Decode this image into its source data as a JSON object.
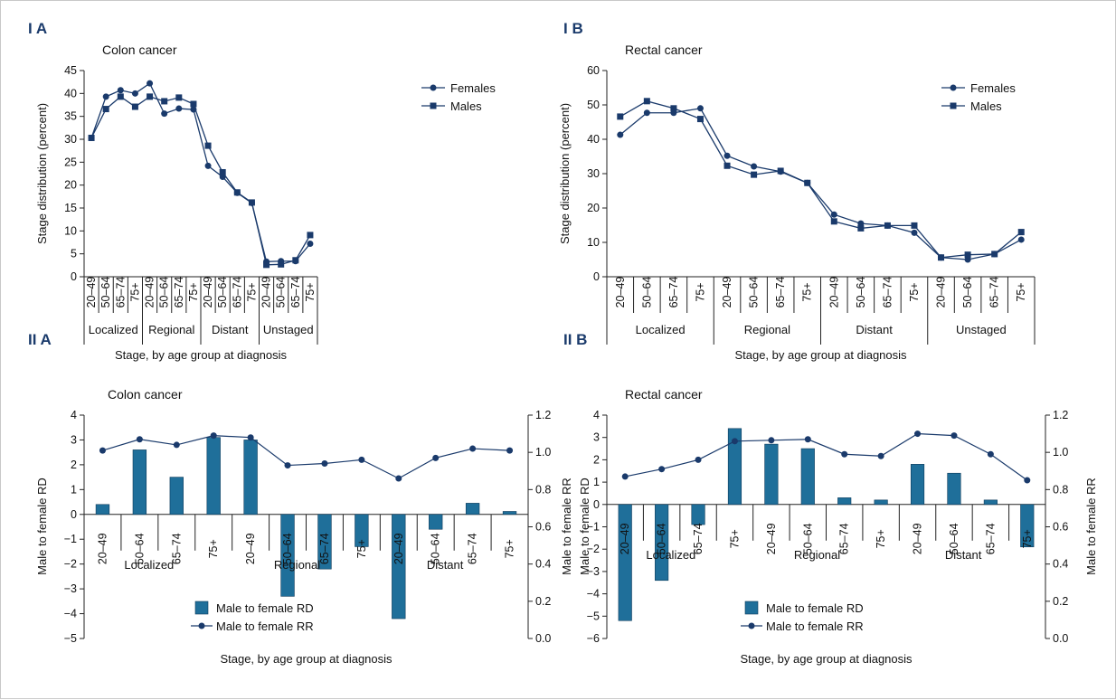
{
  "colors": {
    "series": "#1a3a6b",
    "bar": "#1f6f9a",
    "bar_stroke": "#0d3a5a",
    "axis": "#222222"
  },
  "chart_data": [
    {
      "panel": "I A",
      "type": "line",
      "title": "Colon cancer",
      "ylabel": "Stage distribution (percent)",
      "xlabel": "Stage, by age group at diagnosis",
      "ylim": [
        0,
        45
      ],
      "yticks": [
        "0",
        "5",
        "10",
        "15",
        "20",
        "25",
        "30",
        "35",
        "40",
        "45"
      ],
      "categories": [
        "20–49",
        "50–64",
        "65–74",
        "75+",
        "20–49",
        "50–64",
        "65–74",
        "75+",
        "20–49",
        "50–64",
        "65–74",
        "75+",
        "20–49",
        "50–64",
        "65–74",
        "75+"
      ],
      "groups": [
        "Localized",
        "Regional",
        "Distant",
        "Unstaged"
      ],
      "legend_position": "top-right",
      "series": [
        {
          "name": "Females",
          "marker": "circle",
          "values": [
            30.3,
            39.3,
            40.7,
            40.0,
            42.2,
            35.6,
            36.7,
            36.5,
            24.2,
            21.8,
            18.3,
            16.1,
            3.3,
            3.4,
            3.4,
            7.2
          ]
        },
        {
          "name": "Males",
          "marker": "square",
          "values": [
            30.3,
            36.6,
            39.3,
            37.1,
            39.3,
            38.3,
            39.1,
            37.7,
            28.6,
            22.8,
            18.4,
            16.2,
            2.6,
            2.7,
            3.6,
            9.1
          ]
        }
      ]
    },
    {
      "panel": "I B",
      "type": "line",
      "title": "Rectal cancer",
      "ylabel": "Stage distribution (percent)",
      "xlabel": "Stage, by age group at diagnosis",
      "ylim": [
        0,
        60
      ],
      "yticks": [
        "0",
        "10",
        "20",
        "30",
        "40",
        "50",
        "60"
      ],
      "categories": [
        "20–49",
        "50–64",
        "65–74",
        "75+",
        "20–49",
        "50–64",
        "65–74",
        "75+",
        "20–49",
        "50–64",
        "65–74",
        "75+",
        "20–49",
        "50–64",
        "65–74",
        "75+"
      ],
      "groups": [
        "Localized",
        "Regional",
        "Distant",
        "Unstaged"
      ],
      "legend_position": "top-right",
      "series": [
        {
          "name": "Females",
          "marker": "circle",
          "values": [
            41.3,
            47.7,
            47.7,
            49.0,
            35.2,
            32.1,
            30.6,
            27.3,
            18.1,
            15.5,
            14.9,
            12.8,
            5.6,
            5.0,
            6.6,
            10.8
          ]
        },
        {
          "name": "Males",
          "marker": "square",
          "values": [
            46.6,
            51.1,
            49.0,
            45.9,
            32.3,
            29.7,
            30.8,
            27.3,
            16.1,
            14.1,
            14.9,
            14.9,
            5.6,
            6.4,
            6.6,
            13.0
          ]
        }
      ]
    },
    {
      "panel": "II A",
      "type": "bar",
      "title": "Colon cancer",
      "ylabel": "Male to female RD",
      "y2label": "Male to female RR",
      "xlabel": "Stage, by age group at diagnosis",
      "ylim": [
        -5,
        4
      ],
      "yticks": [
        "−5",
        "−4",
        "−3",
        "−2",
        "−1",
        "0",
        "1",
        "2",
        "3",
        "4"
      ],
      "y2lim": [
        0,
        1.2
      ],
      "y2ticks": [
        "0.0",
        "0.2",
        "0.4",
        "0.6",
        "0.8",
        "1.0",
        "1.2"
      ],
      "categories": [
        "20–49",
        "50–64",
        "65–74",
        "75+",
        "20–49",
        "50–64",
        "65–74",
        "75+",
        "20–49",
        "50–64",
        "65–74",
        "75+"
      ],
      "groups": [
        "Localized",
        "Regional",
        "Distant"
      ],
      "legend_position": "bottom-center",
      "series": [
        {
          "name": "Male to female RD",
          "kind": "bar",
          "axis": "left",
          "values": [
            0.4,
            2.6,
            1.5,
            3.1,
            3.0,
            -3.3,
            -2.2,
            -1.3,
            -4.2,
            -0.6,
            0.45,
            0.12
          ]
        },
        {
          "name": "Male to female RR",
          "kind": "line",
          "axis": "right",
          "values": [
            1.01,
            1.07,
            1.04,
            1.09,
            1.08,
            0.93,
            0.94,
            0.96,
            0.86,
            0.97,
            1.02,
            1.01
          ]
        }
      ]
    },
    {
      "panel": "II B",
      "type": "bar",
      "title": "Rectal cancer",
      "ylabel": "Male to female RD",
      "y2label": "Male to female RR",
      "xlabel": "Stage, by age group at diagnosis",
      "ylim": [
        -6,
        4
      ],
      "yticks": [
        "−6",
        "−5",
        "−4",
        "−3",
        "−2",
        "−1",
        "0",
        "1",
        "2",
        "3",
        "4"
      ],
      "y2lim": [
        0,
        1.2
      ],
      "y2ticks": [
        "0.0",
        "0.2",
        "0.4",
        "0.6",
        "0.8",
        "1.0",
        "1.2"
      ],
      "categories": [
        "20–49",
        "50–64",
        "65–74",
        "75+",
        "20–49",
        "50–64",
        "65–74",
        "75+",
        "20–49",
        "50–64",
        "65–74",
        "75+"
      ],
      "groups": [
        "Localized",
        "Regional",
        "Distant"
      ],
      "legend_position": "bottom-center",
      "series": [
        {
          "name": "Male to female RD",
          "kind": "bar",
          "axis": "left",
          "values": [
            -5.2,
            -3.4,
            -0.9,
            3.4,
            2.7,
            2.5,
            0.3,
            0.2,
            1.8,
            1.4,
            0.2,
            -1.9
          ]
        },
        {
          "name": "Male to female RR",
          "kind": "line",
          "axis": "right",
          "values": [
            0.87,
            0.91,
            0.96,
            1.06,
            1.065,
            1.07,
            0.99,
            0.98,
            1.1,
            1.09,
            0.99,
            0.85
          ]
        }
      ]
    }
  ]
}
